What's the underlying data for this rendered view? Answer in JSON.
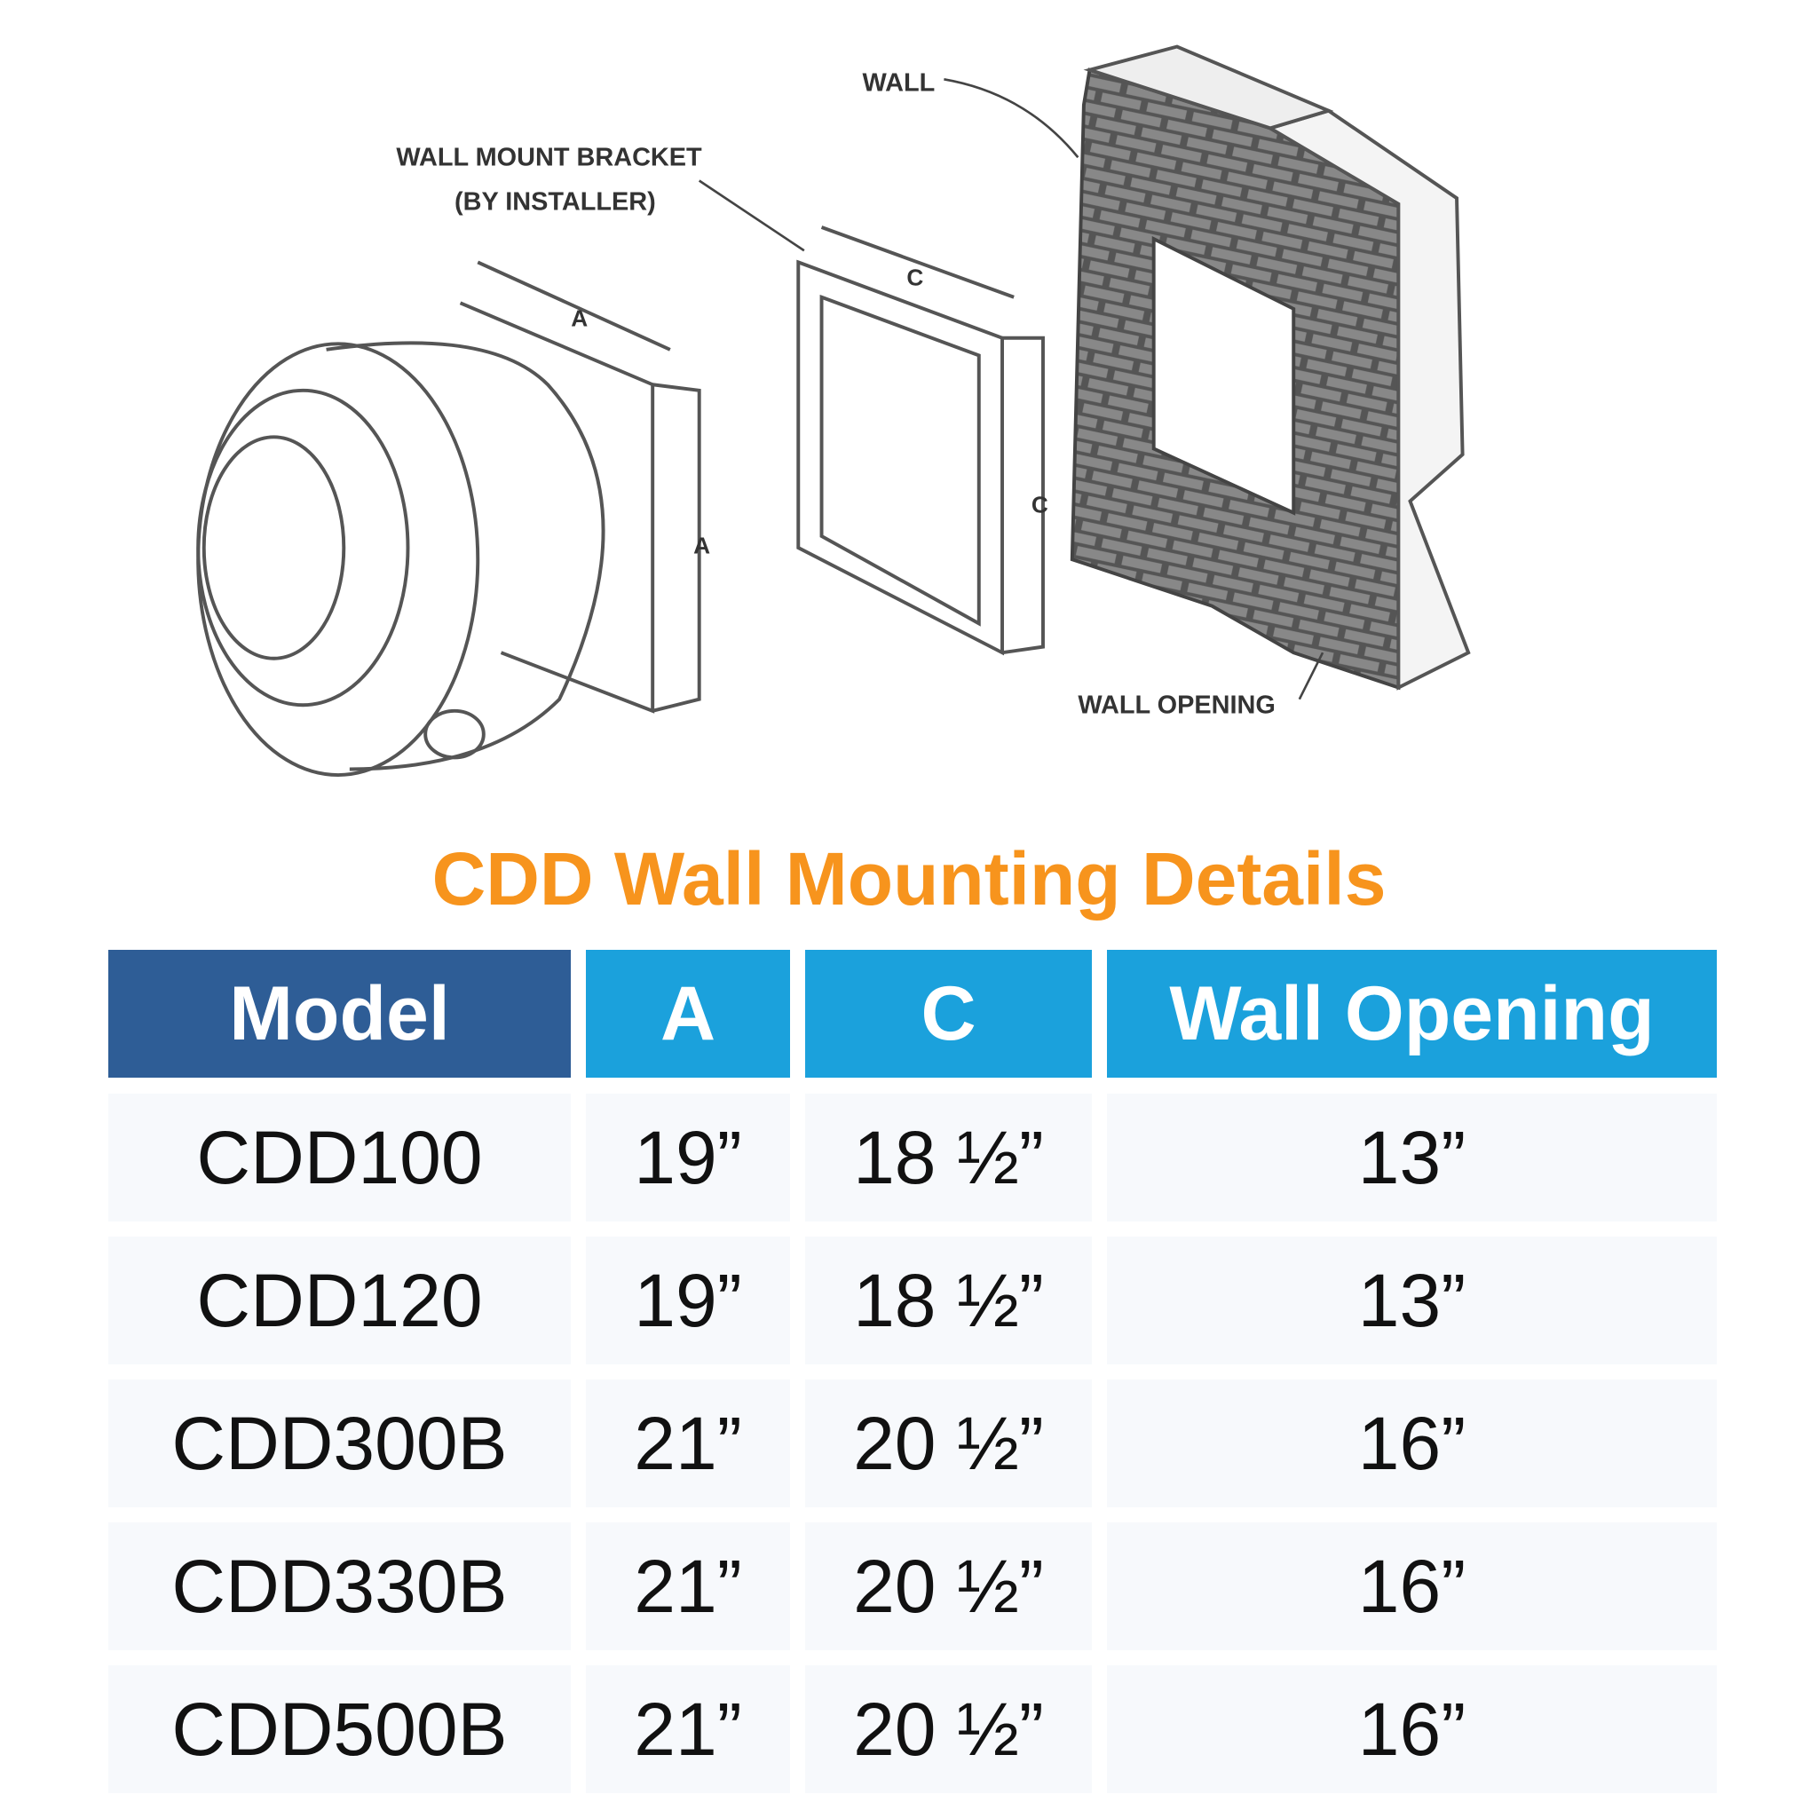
{
  "diagram": {
    "labels": {
      "wall": "WALL",
      "bracket": "WALL MOUNT BRACKET",
      "bracket_note": "(BY INSTALLER)",
      "dim_a": "A",
      "dim_c": "C",
      "wall_opening": "WALL OPENING"
    }
  },
  "title": "CDD Wall Mounting Details",
  "colors": {
    "title": "#F7941D",
    "model_header": "#2E5D96",
    "header": "#1BA1DC"
  },
  "table": {
    "headers": [
      "Model",
      "A",
      "C",
      "Wall Opening"
    ],
    "rows": [
      [
        "CDD100",
        "19”",
        "18 ½”",
        "13”"
      ],
      [
        "CDD120",
        "19”",
        "18 ½”",
        "13”"
      ],
      [
        "CDD300B",
        "21”",
        "20 ½”",
        "16”"
      ],
      [
        "CDD330B",
        "21”",
        "20 ½”",
        "16”"
      ],
      [
        "CDD500B",
        "21”",
        "20 ½”",
        "16”"
      ]
    ]
  }
}
